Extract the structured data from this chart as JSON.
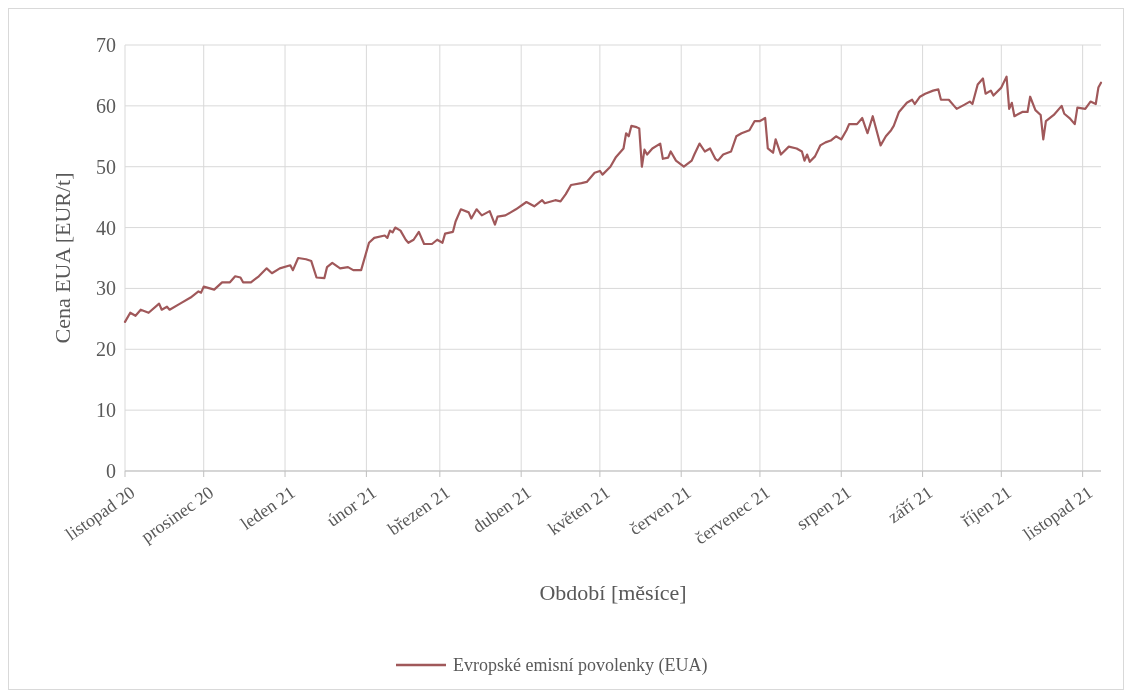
{
  "chart_data": {
    "type": "line",
    "xlabel": "Období [měsíce]",
    "ylabel": "Cena EUA [EUR/t]",
    "xlim": [
      "2020-11-01",
      "2021-11-08"
    ],
    "ylim": [
      0,
      70
    ],
    "yticks": [
      0,
      10,
      20,
      30,
      40,
      50,
      60,
      70
    ],
    "xticks": [
      {
        "value": "2020-11-01",
        "label": "listopad 20"
      },
      {
        "value": "2020-12-01",
        "label": "prosinec 20"
      },
      {
        "value": "2021-01-01",
        "label": "leden 21"
      },
      {
        "value": "2021-02-01",
        "label": "únor 21"
      },
      {
        "value": "2021-03-01",
        "label": "březen 21"
      },
      {
        "value": "2021-04-01",
        "label": "duben 21"
      },
      {
        "value": "2021-05-01",
        "label": "květen 21"
      },
      {
        "value": "2021-06-01",
        "label": "červen 21"
      },
      {
        "value": "2021-07-01",
        "label": "červenec 21"
      },
      {
        "value": "2021-08-01",
        "label": "srpen 21"
      },
      {
        "value": "2021-09-01",
        "label": "září 21"
      },
      {
        "value": "2021-10-01",
        "label": "říjen 21"
      },
      {
        "value": "2021-11-01",
        "label": "listopad 21"
      }
    ],
    "grid": true,
    "legend": "bottom",
    "marker": "none",
    "line_style": "solid",
    "x": [
      "2020-11-01",
      "2020-11-03",
      "2020-11-05",
      "2020-11-07",
      "2020-11-10",
      "2020-11-14",
      "2020-11-15",
      "2020-11-17",
      "2020-11-18",
      "2020-11-22",
      "2020-11-26",
      "2020-11-29",
      "2020-11-30",
      "2020-12-01",
      "2020-12-05",
      "2020-12-08",
      "2020-12-11",
      "2020-12-13",
      "2020-12-15",
      "2020-12-16",
      "2020-12-19",
      "2020-12-22",
      "2020-12-25",
      "2020-12-27",
      "2020-12-30",
      "2021-01-03",
      "2021-01-04",
      "2021-01-06",
      "2021-01-09",
      "2021-01-11",
      "2021-01-13",
      "2021-01-16",
      "2021-01-17",
      "2021-01-19",
      "2021-01-22",
      "2021-01-25",
      "2021-01-27",
      "2021-01-30",
      "2021-02-02",
      "2021-02-04",
      "2021-02-08",
      "2021-02-09",
      "2021-02-10",
      "2021-02-11",
      "2021-02-12",
      "2021-02-14",
      "2021-02-16",
      "2021-02-17",
      "2021-02-19",
      "2021-02-21",
      "2021-02-23",
      "2021-02-26",
      "2021-02-28",
      "2021-03-02",
      "2021-03-03",
      "2021-03-06",
      "2021-03-07",
      "2021-03-09",
      "2021-03-12",
      "2021-03-13",
      "2021-03-15",
      "2021-03-17",
      "2021-03-20",
      "2021-03-22",
      "2021-03-23",
      "2021-03-26",
      "2021-03-28",
      "2021-03-30",
      "2021-04-03",
      "2021-04-06",
      "2021-04-09",
      "2021-04-10",
      "2021-04-14",
      "2021-04-16",
      "2021-04-18",
      "2021-04-20",
      "2021-04-24",
      "2021-04-26",
      "2021-04-29",
      "2021-05-01",
      "2021-05-02",
      "2021-05-05",
      "2021-05-07",
      "2021-05-10",
      "2021-05-11",
      "2021-05-12",
      "2021-05-13",
      "2021-05-15",
      "2021-05-16",
      "2021-05-17",
      "2021-05-18",
      "2021-05-19",
      "2021-05-21",
      "2021-05-24",
      "2021-05-25",
      "2021-05-27",
      "2021-05-28",
      "2021-05-30",
      "2021-06-02",
      "2021-06-05",
      "2021-06-06",
      "2021-06-08",
      "2021-06-10",
      "2021-06-12",
      "2021-06-14",
      "2021-06-15",
      "2021-06-17",
      "2021-06-20",
      "2021-06-22",
      "2021-06-24",
      "2021-06-27",
      "2021-06-29",
      "2021-07-01",
      "2021-07-03",
      "2021-07-04",
      "2021-07-06",
      "2021-07-07",
      "2021-07-09",
      "2021-07-12",
      "2021-07-15",
      "2021-07-17",
      "2021-07-18",
      "2021-07-19",
      "2021-07-20",
      "2021-07-22",
      "2021-07-24",
      "2021-07-26",
      "2021-07-28",
      "2021-07-30",
      "2021-08-01",
      "2021-08-03",
      "2021-08-04",
      "2021-08-07",
      "2021-08-09",
      "2021-08-11",
      "2021-08-13",
      "2021-08-16",
      "2021-08-18",
      "2021-08-20",
      "2021-08-21",
      "2021-08-23",
      "2021-08-26",
      "2021-08-28",
      "2021-08-29",
      "2021-08-31",
      "2021-09-02",
      "2021-09-05",
      "2021-09-07",
      "2021-09-08",
      "2021-09-11",
      "2021-09-13",
      "2021-09-14",
      "2021-09-17",
      "2021-09-19",
      "2021-09-20",
      "2021-09-22",
      "2021-09-24",
      "2021-09-25",
      "2021-09-27",
      "2021-09-28",
      "2021-10-01",
      "2021-10-03",
      "2021-10-04",
      "2021-10-05",
      "2021-10-06",
      "2021-10-09",
      "2021-10-11",
      "2021-10-12",
      "2021-10-14",
      "2021-10-16",
      "2021-10-17",
      "2021-10-18",
      "2021-10-21",
      "2021-10-24",
      "2021-10-25",
      "2021-10-27",
      "2021-10-29",
      "2021-10-30",
      "2021-11-02",
      "2021-11-04",
      "2021-11-06",
      "2021-11-07",
      "2021-11-08"
    ],
    "series": [
      {
        "name": "Evropské emisní povolenky (EUA)",
        "color": "#a0585a",
        "values": [
          24.5,
          26,
          25.5,
          26.5,
          26,
          27.5,
          26.5,
          27,
          26.5,
          27.5,
          28.5,
          29.5,
          29.3,
          30.3,
          29.8,
          31,
          31,
          32,
          31.8,
          31,
          31,
          32,
          33.3,
          32.5,
          33.3,
          33.8,
          33,
          35,
          34.8,
          34.5,
          31.8,
          31.7,
          33.5,
          34.2,
          33.3,
          33.5,
          33,
          33,
          37.5,
          38.3,
          38.7,
          38.3,
          39.5,
          39.2,
          40,
          39.5,
          38,
          37.5,
          38,
          39.3,
          37.3,
          37.3,
          38,
          37.5,
          39,
          39.3,
          41,
          43,
          42.5,
          41.5,
          43,
          42,
          42.7,
          40.5,
          41.8,
          42,
          42.5,
          43,
          44.2,
          43.5,
          44.5,
          44,
          44.5,
          44.3,
          45.5,
          47,
          47.3,
          47.5,
          49,
          49.3,
          48.7,
          50,
          51.5,
          53,
          55.5,
          55,
          56.7,
          56.5,
          56.3,
          50,
          52.8,
          52,
          53,
          53.8,
          51.3,
          51.5,
          52.5,
          51,
          50,
          51,
          52,
          53.8,
          52.5,
          53,
          51.3,
          51,
          52,
          52.5,
          55,
          55.5,
          56,
          57.5,
          57.5,
          58,
          53,
          52.3,
          54.5,
          52,
          53.3,
          53,
          52.5,
          51,
          52,
          50.8,
          51.7,
          53.5,
          54,
          54.3,
          55,
          54.5,
          56,
          57,
          57,
          58,
          55.5,
          58.3,
          53.5,
          55,
          56,
          56.7,
          59,
          60.5,
          61,
          60.3,
          61.5,
          62,
          62.5,
          62.7,
          61,
          61,
          60,
          59.5,
          60.2,
          60.7,
          60.3,
          63.5,
          64.5,
          62,
          62.5,
          61.7,
          63,
          64.8,
          59.5,
          60.5,
          58.3,
          59,
          59,
          61.5,
          59.3,
          58.5,
          54.5,
          57.5,
          58.5,
          60,
          58.7,
          58,
          57,
          59.7,
          59.5,
          60.7,
          60.3,
          63,
          63.8
        ]
      }
    ]
  }
}
